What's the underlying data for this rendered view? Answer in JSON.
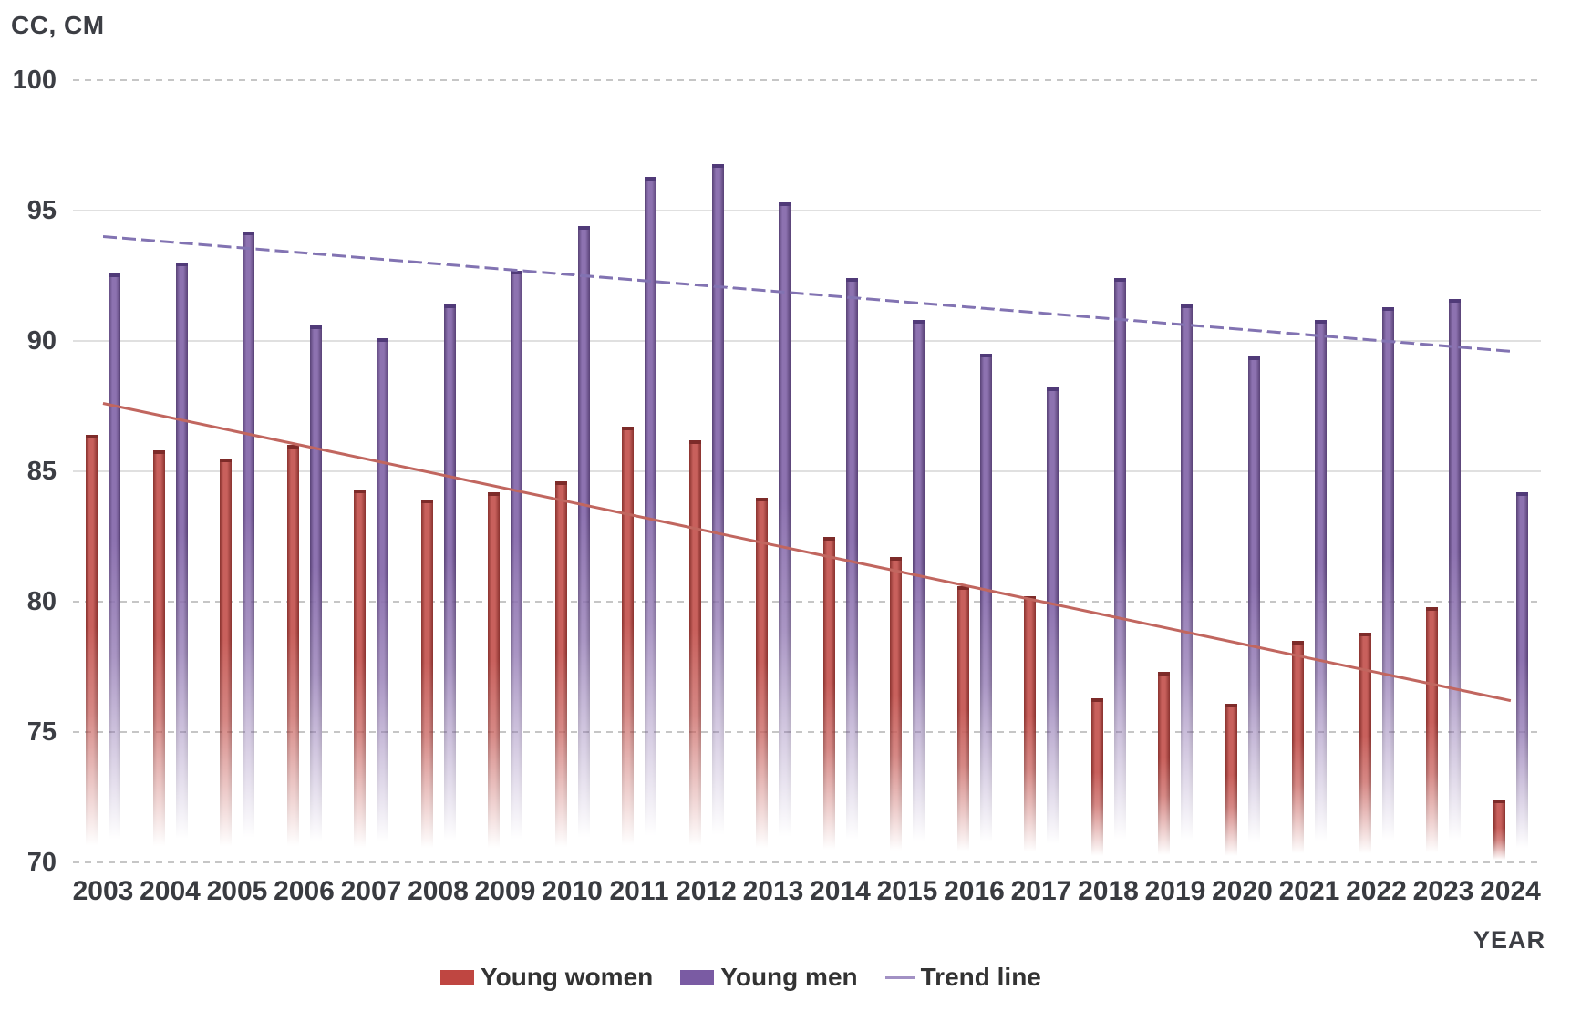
{
  "title": "CC, CM",
  "xaxis_title": "YEAR",
  "legend": {
    "women_label": "Young women",
    "men_label": "Young men",
    "trend_label": "Trend line"
  },
  "colors": {
    "women_bar": "#bf4641",
    "women_cap": "#7d2b29",
    "men_bar": "#7a5ba3",
    "men_cap": "#503a78",
    "women_trend": "#c1665f",
    "men_trend": "#8273b2",
    "grid_solid": "#e0e0e0",
    "grid_dotted": "#c6c6c6",
    "text": "#3c3e44"
  },
  "chart_data": {
    "type": "bar",
    "title": "CC, CM",
    "xlabel": "YEAR",
    "ylabel": "CC, CM",
    "ylim": [
      70,
      100
    ],
    "yticks": [
      70,
      75,
      80,
      85,
      90,
      95,
      100
    ],
    "grid": true,
    "legend_position": "bottom",
    "categories": [
      2003,
      2004,
      2005,
      2006,
      2007,
      2008,
      2009,
      2010,
      2011,
      2012,
      2013,
      2014,
      2015,
      2016,
      2017,
      2018,
      2019,
      2020,
      2021,
      2022,
      2023,
      2024
    ],
    "series": [
      {
        "name": "Young women",
        "color": "#bf4641",
        "values": [
          86.4,
          85.8,
          85.5,
          86.0,
          84.3,
          83.9,
          84.2,
          84.6,
          86.7,
          86.2,
          84.0,
          82.5,
          81.7,
          80.6,
          80.2,
          76.3,
          77.3,
          76.1,
          78.5,
          78.8,
          79.8,
          72.4
        ]
      },
      {
        "name": "Young men",
        "color": "#7a5ba3",
        "values": [
          92.6,
          93.0,
          94.2,
          90.6,
          90.1,
          91.4,
          92.7,
          94.4,
          96.3,
          96.8,
          95.3,
          92.4,
          90.8,
          89.5,
          88.2,
          92.4,
          91.4,
          89.4,
          90.8,
          91.3,
          91.6,
          84.2
        ]
      }
    ],
    "trend_lines": [
      {
        "name": "Young men trend",
        "start_year": 2003,
        "end_year": 2024,
        "start_value": 94.0,
        "end_value": 89.6,
        "style": "dashed",
        "color": "#8273b2"
      },
      {
        "name": "Young women trend",
        "start_year": 2003,
        "end_year": 2024,
        "start_value": 87.6,
        "end_value": 76.2,
        "style": "solid",
        "color": "#c1665f"
      }
    ],
    "gridline_styles": {
      "100": "dotted",
      "95": "solid",
      "90": "solid",
      "85": "solid",
      "80": "dotted",
      "75": "dotted",
      "70": "dotted"
    }
  }
}
